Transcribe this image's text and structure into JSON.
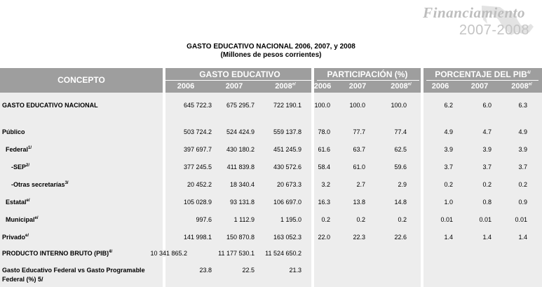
{
  "brand": {
    "line1": "Financiamiento",
    "line2": "2007-2008"
  },
  "title": "GASTO EDUCATIVO NACIONAL 2006,  2007, y 2008",
  "subtitle": "(Millones de pesos corrientes)",
  "header": {
    "concept": "CONCEPTO",
    "groups": [
      {
        "label": "GASTO EDUCATIVO",
        "note": "",
        "years": [
          "2006",
          "2007",
          "2008"
        ],
        "year_notes": [
          "",
          "",
          "e/"
        ]
      },
      {
        "label": "PARTICIPACIÓN (%)",
        "note": "",
        "years": [
          "2006",
          "2007",
          "2008"
        ],
        "year_notes": [
          "",
          "",
          "e/"
        ]
      },
      {
        "label": "PORCENTAJE DEL PIB",
        "note": "4/",
        "years": [
          "2006",
          "2007",
          "2008"
        ],
        "year_notes": [
          "",
          "",
          "e/"
        ]
      }
    ]
  },
  "rows": [
    {
      "label": "GASTO EDUCATIVO NACIONAL",
      "note": "",
      "values": [
        "645 722.3",
        "675 295.7",
        "722 190.1",
        "100.0",
        "100.0",
        "100.0",
        "6.2",
        "6.0",
        "6.3"
      ]
    },
    {
      "label": "Público",
      "note": "",
      "values": [
        "503 724.2",
        "524 424.9",
        "559 137.8",
        "78.0",
        "77.7",
        "77.4",
        "4.9",
        "4.7",
        "4.9"
      ]
    },
    {
      "label": "Federal",
      "note": "1/",
      "values": [
        "397 697.7",
        "430 180.2",
        "451 245.9",
        "61.6",
        "63.7",
        "62.5",
        "3.9",
        "3.9",
        "3.9"
      ]
    },
    {
      "label": "-SEP",
      "note": "2/",
      "values": [
        "377 245.5",
        "411 839.8",
        "430 572.6",
        "58.4",
        "61.0",
        "59.6",
        "3.7",
        "3.7",
        "3.7"
      ]
    },
    {
      "label": "-Otras secretarías",
      "note": "3/",
      "values": [
        "20 452.2",
        "18 340.4",
        "20 673.3",
        "3.2",
        "2.7",
        "2.9",
        "0.2",
        "0.2",
        "0.2"
      ]
    },
    {
      "label": "Estatal",
      "note": "e/",
      "values": [
        "105 028.9",
        "93 131.8",
        "106 697.0",
        "16.3",
        "13.8",
        "14.8",
        "1.0",
        "0.8",
        "0.9"
      ]
    },
    {
      "label": "Municipal",
      "note": "e/",
      "values": [
        "997.6",
        "1 112.9",
        "1 195.0",
        "0.2",
        "0.2",
        "0.2",
        "0.01",
        "0.01",
        "0.01"
      ]
    },
    {
      "label": "Privado",
      "note": "e/",
      "values": [
        "141 998.1",
        "150 870.8",
        "163 052.3",
        "22.0",
        "22.3",
        "22.6",
        "1.4",
        "1.4",
        "1.4"
      ]
    },
    {
      "label": "PRODUCTO INTERNO BRUTO (PIB)",
      "note": "4/",
      "values": [
        "10 341 865.2",
        "11 177 530.1",
        "11 524 650.2",
        "",
        "",
        "",
        "",
        "",
        ""
      ]
    },
    {
      "label": "Gasto Educativo Federal vs Gasto Programable",
      "label2": "Federal (%) 5/",
      "note": "",
      "values": [
        "23.8",
        "22.5",
        "21.3",
        "",
        "",
        "",
        "",
        "",
        ""
      ]
    }
  ]
}
